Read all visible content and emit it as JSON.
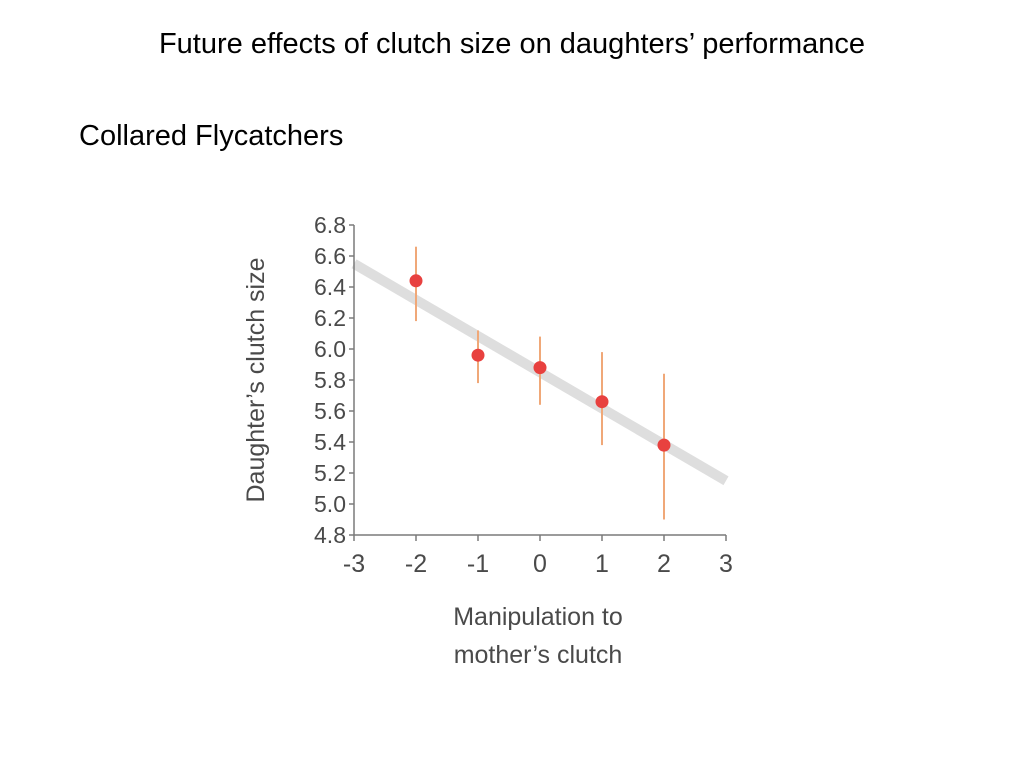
{
  "slide": {
    "title": "Future effects of clutch size on daughters’ performance",
    "subtitle": "Collared Flycatchers"
  },
  "colors": {
    "point": "#e8413f",
    "error_bar": "#f0a878",
    "trend_line": "#dedede",
    "axis": "#7a7a7a",
    "text": "#4a4a4a"
  },
  "chart_data": {
    "type": "scatter",
    "xlabel_lines": [
      "Manipulation to",
      "mother’s clutch"
    ],
    "ylabel": "Daughter’s clutch size",
    "xlim": [
      -3,
      3
    ],
    "ylim": [
      4.8,
      6.8
    ],
    "x_ticks": [
      "-3",
      "-2",
      "-1",
      "0",
      "1",
      "2",
      "3"
    ],
    "y_ticks": [
      "6.8",
      "6.6",
      "6.4",
      "6.2",
      "6.0",
      "5.8",
      "5.6",
      "5.4",
      "5.2",
      "5.0",
      "4.8"
    ],
    "points": [
      {
        "x": -2,
        "y": 6.44,
        "err_low": 6.18,
        "err_high": 6.66
      },
      {
        "x": -1,
        "y": 5.96,
        "err_low": 5.78,
        "err_high": 6.12
      },
      {
        "x": 0,
        "y": 5.88,
        "err_low": 5.64,
        "err_high": 6.08
      },
      {
        "x": 1,
        "y": 5.66,
        "err_low": 5.38,
        "err_high": 5.98
      },
      {
        "x": 2,
        "y": 5.38,
        "err_low": 4.9,
        "err_high": 5.84
      }
    ],
    "trend_line": {
      "x": [
        -3,
        3
      ],
      "y": [
        6.55,
        5.15
      ]
    },
    "grid": false,
    "legend": "none"
  }
}
